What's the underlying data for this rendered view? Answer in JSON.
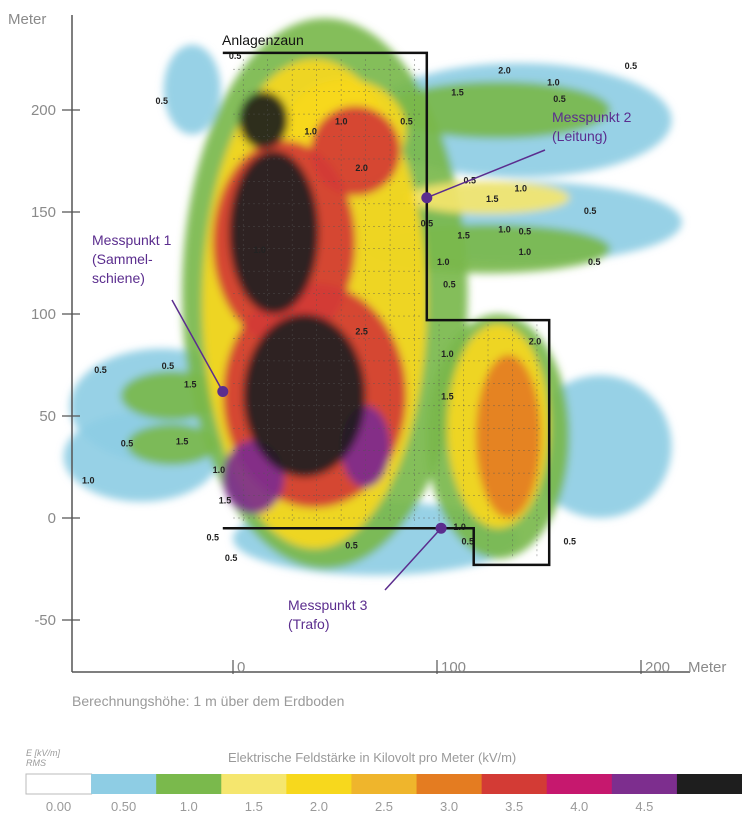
{
  "chart_data": {
    "type": "heatmap",
    "y_axis": {
      "label": "Meter",
      "ticks": [
        200,
        150,
        100,
        50,
        0,
        -50
      ],
      "tick_labels": [
        "200",
        "150",
        "100",
        "50",
        "0",
        "-50"
      ],
      "range": [
        -80,
        240
      ]
    },
    "x_axis": {
      "unit": "Meter",
      "ticks": [
        0,
        100,
        200
      ],
      "tick_labels": [
        "0",
        "100",
        "200"
      ],
      "range": [
        -80,
        250
      ]
    },
    "fence_label": "Anlagenzaun",
    "fence": [
      [
        -5,
        228
      ],
      [
        95,
        228
      ],
      [
        95,
        97
      ],
      [
        155,
        97
      ],
      [
        155,
        -23
      ],
      [
        118,
        -23
      ],
      [
        118,
        -5
      ],
      [
        -5,
        -5
      ]
    ],
    "measurement_points": [
      {
        "label_lines": [
          "Messpunkt 1",
          "(Sammel-",
          "schiene)"
        ],
        "x": -5,
        "y": 62
      },
      {
        "label_lines": [
          "Messpunkt 2",
          "(Leitung)"
        ],
        "x": 95,
        "y": 157
      },
      {
        "label_lines": [
          "Messpunkt 3",
          "(Trafo)"
        ],
        "x": 102,
        "y": -5
      }
    ],
    "contour_labels": [
      {
        "text": "0.5",
        "x": -2,
        "y": 225
      },
      {
        "text": "1.0",
        "x": 50,
        "y": 193
      },
      {
        "text": "0.5",
        "x": 82,
        "y": 193
      },
      {
        "text": "1.5",
        "x": 107,
        "y": 207
      },
      {
        "text": "2.0",
        "x": 130,
        "y": 218
      },
      {
        "text": "1.0",
        "x": 154,
        "y": 212
      },
      {
        "text": "0.5",
        "x": 192,
        "y": 220
      },
      {
        "text": "0.5",
        "x": 157,
        "y": 204
      },
      {
        "text": "0.5",
        "x": -38,
        "y": 203
      },
      {
        "text": "0.5",
        "x": 113,
        "y": 164
      },
      {
        "text": "1.0",
        "x": 138,
        "y": 160
      },
      {
        "text": "1.5",
        "x": 124,
        "y": 155
      },
      {
        "text": "0.5",
        "x": 172,
        "y": 149
      },
      {
        "text": "1.0",
        "x": 130,
        "y": 140
      },
      {
        "text": "1.5",
        "x": 110,
        "y": 137
      },
      {
        "text": "0.5",
        "x": 140,
        "y": 139
      },
      {
        "text": "1.0",
        "x": 140,
        "y": 129
      },
      {
        "text": "0.5",
        "x": 174,
        "y": 124
      },
      {
        "text": "1.0",
        "x": 100,
        "y": 124
      },
      {
        "text": "0.5",
        "x": 103,
        "y": 113
      },
      {
        "text": "0.5",
        "x": 92,
        "y": 143
      },
      {
        "text": "0.5",
        "x": -68,
        "y": 71
      },
      {
        "text": "0.5",
        "x": -35,
        "y": 73
      },
      {
        "text": "1.5",
        "x": -24,
        "y": 64
      },
      {
        "text": "0.5",
        "x": -55,
        "y": 35
      },
      {
        "text": "1.5",
        "x": -28,
        "y": 36
      },
      {
        "text": "1.0",
        "x": -74,
        "y": 17
      },
      {
        "text": "1.0",
        "x": -10,
        "y": 22
      },
      {
        "text": "1.5",
        "x": -7,
        "y": 7
      },
      {
        "text": "0.5",
        "x": -13,
        "y": -11
      },
      {
        "text": "0.5",
        "x": -4,
        "y": -21
      },
      {
        "text": "0.5",
        "x": 55,
        "y": -15
      },
      {
        "text": "1.0",
        "x": 108,
        "y": -6
      },
      {
        "text": "0.5",
        "x": 112,
        "y": -13
      },
      {
        "text": "0.5",
        "x": 162,
        "y": -13
      },
      {
        "text": "1.0",
        "x": 35,
        "y": 188
      },
      {
        "text": "2.0",
        "x": 60,
        "y": 170
      },
      {
        "text": "1.0",
        "x": 102,
        "y": 79
      },
      {
        "text": "1.5",
        "x": 102,
        "y": 58
      },
      {
        "text": "2.0",
        "x": 145,
        "y": 85
      },
      {
        "text": "1.0",
        "x": 10,
        "y": 130
      },
      {
        "text": "2.5",
        "x": 60,
        "y": 90
      }
    ],
    "heat_blobs": [
      {
        "x": -20,
        "y": 210,
        "rx": 14,
        "ry": 22,
        "level": 0.5
      },
      {
        "x": 140,
        "y": 195,
        "rx": 75,
        "ry": 28,
        "level": 0.5
      },
      {
        "x": 140,
        "y": 145,
        "rx": 80,
        "ry": 20,
        "level": 0.5
      },
      {
        "x": 125,
        "y": 132,
        "rx": 60,
        "ry": 12,
        "level": 1.0
      },
      {
        "x": -35,
        "y": 55,
        "rx": 45,
        "ry": 28,
        "level": 0.5
      },
      {
        "x": -45,
        "y": 30,
        "rx": 38,
        "ry": 22,
        "level": 0.5
      },
      {
        "x": 180,
        "y": 35,
        "rx": 35,
        "ry": 35,
        "level": 0.5
      },
      {
        "x": 70,
        "y": -10,
        "rx": 70,
        "ry": 18,
        "level": 0.5
      },
      {
        "x": 45,
        "y": 110,
        "rx": 70,
        "ry": 135,
        "level": 1.0
      },
      {
        "x": 130,
        "y": 200,
        "rx": 55,
        "ry": 14,
        "level": 1.0
      },
      {
        "x": 125,
        "y": 157,
        "rx": 40,
        "ry": 8,
        "level": 1.5
      },
      {
        "x": -30,
        "y": 60,
        "rx": 25,
        "ry": 12,
        "level": 1.0
      },
      {
        "x": -30,
        "y": 36,
        "rx": 22,
        "ry": 10,
        "level": 1.0
      },
      {
        "x": 130,
        "y": 40,
        "rx": 35,
        "ry": 60,
        "level": 1.0
      },
      {
        "x": 40,
        "y": 105,
        "rx": 55,
        "ry": 120,
        "level": 2.0
      },
      {
        "x": 55,
        "y": 190,
        "rx": 30,
        "ry": 25,
        "level": 2.0
      },
      {
        "x": 130,
        "y": 45,
        "rx": 25,
        "ry": 50,
        "level": 2.0
      },
      {
        "x": 25,
        "y": 135,
        "rx": 35,
        "ry": 50,
        "level": 3.5
      },
      {
        "x": 40,
        "y": 60,
        "rx": 45,
        "ry": 55,
        "level": 3.5
      },
      {
        "x": 60,
        "y": 180,
        "rx": 22,
        "ry": 22,
        "level": 3.5
      },
      {
        "x": 135,
        "y": 40,
        "rx": 16,
        "ry": 40,
        "level": 3.0
      },
      {
        "x": 20,
        "y": 140,
        "rx": 22,
        "ry": 40,
        "level": 5.0
      },
      {
        "x": 15,
        "y": 195,
        "rx": 12,
        "ry": 14,
        "level": 5.0
      },
      {
        "x": 35,
        "y": 60,
        "rx": 30,
        "ry": 40,
        "level": 5.0
      },
      {
        "x": 10,
        "y": 20,
        "rx": 15,
        "ry": 18,
        "level": 4.5
      },
      {
        "x": 65,
        "y": 35,
        "rx": 12,
        "ry": 20,
        "level": 4.5
      }
    ],
    "caption": "Berechnungshöhe: 1 m über dem Erdboden",
    "legend": {
      "title": "Elektrische Feldstärke in Kilovolt pro Meter (kV/m)",
      "unit_line1": "E [kV/m]",
      "unit_line2": "RMS",
      "bins": [
        0.0,
        0.5,
        1.0,
        1.5,
        2.0,
        2.5,
        3.0,
        3.5,
        4.0,
        4.5,
        5.0
      ],
      "colors": [
        "#ffffff",
        "#8ecde4",
        "#7ab94c",
        "#f5e66e",
        "#f7d81d",
        "#efb52c",
        "#e47c21",
        "#d33b35",
        "#c6186e",
        "#7d2e8e",
        "#1e1e1e"
      ],
      "tick_labels": [
        "0.00",
        "0.50",
        "1.0",
        "1.5",
        "2.0",
        "2.5",
        "3.0",
        "3.5",
        "4.0",
        "4.5"
      ]
    }
  }
}
